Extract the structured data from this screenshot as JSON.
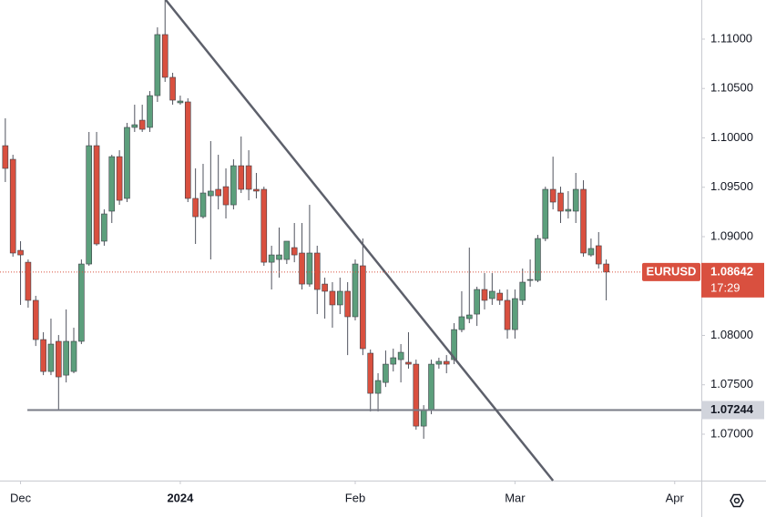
{
  "chart_data": {
    "type": "candlestick",
    "up_color": "#5c9f7c",
    "down_color": "#d9503f",
    "xlim": [
      -0.7,
      91.5
    ],
    "xticks": [
      {
        "value": 2,
        "label": "Dec"
      },
      {
        "value": 23,
        "label": "2024"
      },
      {
        "value": 46,
        "label": "Feb"
      },
      {
        "value": 67,
        "label": "Mar"
      },
      {
        "value": 88,
        "label": "Apr"
      }
    ],
    "ylim": [
      1.0653,
      1.11396
    ],
    "yticks": [
      {
        "value": 1.07,
        "label": "1.07000"
      },
      {
        "value": 1.075,
        "label": "1.07500"
      },
      {
        "value": 1.08,
        "label": "1.08000"
      },
      {
        "value": 1.085,
        "label": "1.08500"
      },
      {
        "value": 1.09,
        "label": "1.09000"
      },
      {
        "value": 1.095,
        "label": "1.09500"
      },
      {
        "value": 1.1,
        "label": "1.10000"
      },
      {
        "value": 1.105,
        "label": "1.10500"
      },
      {
        "value": 1.11,
        "label": "1.11000"
      }
    ],
    "open": [
      1.09921,
      1.09783,
      1.08861,
      1.08741,
      1.08355,
      1.07958,
      1.07635,
      1.0794,
      1.07598,
      1.07635,
      1.0794,
      1.08723,
      1.09921,
      1.08954,
      1.09258,
      1.0981,
      1.09387,
      1.10106,
      1.10179,
      1.10106,
      1.10428,
      1.11046,
      1.10613,
      1.10355,
      1.10364,
      1.09387,
      1.09202,
      1.09414,
      1.09479,
      1.09506,
      1.09322,
      1.09718,
      1.09718,
      1.09479,
      1.09479,
      1.08741,
      1.08769,
      1.08769,
      1.08889,
      1.08834,
      1.0852,
      1.08834,
      1.0852,
      1.08447,
      1.08309,
      1.08447,
      1.08189,
      1.08705,
      1.0782,
      1.07414,
      1.07524,
      1.07709,
      1.07755,
      1.07728,
      1.07709,
      1.07082,
      1.07248,
      1.07709,
      1.07737,
      1.07755,
      1.08059,
      1.0817,
      1.08216,
      1.08465,
      1.08373,
      1.08428,
      1.08355,
      1.08059,
      1.08355,
      1.08557,
      1.08557,
      1.08981,
      1.09479,
      1.09442,
      1.09258,
      1.09258,
      1.09479,
      1.08815,
      1.08908,
      1.08723
    ],
    "high": [
      1.10198,
      1.09829,
      1.08954,
      1.08769,
      1.08401,
      1.08032,
      1.0817,
      1.08004,
      1.08263,
      1.08078,
      1.08769,
      1.1006,
      1.1006,
      1.09276,
      1.09829,
      1.09875,
      1.10152,
      1.10336,
      1.10336,
      1.10474,
      1.11119,
      1.11396,
      1.10659,
      1.10428,
      1.10401,
      1.09691,
      1.09737,
      1.09967,
      1.09829,
      1.09691,
      1.09783,
      1.10014,
      1.09875,
      1.09645,
      1.09506,
      1.08908,
      1.09092,
      1.08954,
      1.09138,
      1.09138,
      1.09322,
      1.08908,
      1.08585,
      1.08539,
      1.08585,
      1.08539,
      1.08769,
      1.08981,
      1.07857,
      1.07617,
      1.07847,
      1.07866,
      1.07912,
      1.08032,
      1.07755,
      1.07294,
      1.07755,
      1.07774,
      1.07801,
      1.08124,
      1.08447,
      1.08889,
      1.08493,
      1.08631,
      1.08631,
      1.08465,
      1.08465,
      1.08465,
      1.08677,
      1.08769,
      1.09018,
      1.09506,
      1.0981,
      1.09506,
      1.09461,
      1.09645,
      1.09571,
      1.08981,
      1.09046,
      1.08769
    ],
    "low": [
      1.09553,
      1.08797,
      1.08309,
      1.08281,
      1.07893,
      1.07598,
      1.07598,
      1.07248,
      1.07524,
      1.07617,
      1.07912,
      1.08705,
      1.08908,
      1.08908,
      1.09138,
      1.09322,
      1.0935,
      1.1006,
      1.1006,
      1.1006,
      1.10364,
      1.10567,
      1.10336,
      1.10336,
      1.0935,
      1.08926,
      1.09184,
      1.08769,
      1.09276,
      1.09184,
      1.09276,
      1.09442,
      1.09368,
      1.09387,
      1.08705,
      1.08465,
      1.08585,
      1.08723,
      1.08741,
      1.08465,
      1.08493,
      1.08216,
      1.0817,
      1.08078,
      1.08216,
      1.07801,
      1.08152,
      1.07801,
      1.0723,
      1.0723,
      1.07478,
      1.07635,
      1.07524,
      1.07663,
      1.07045,
      1.06953,
      1.07202,
      1.07663,
      1.07617,
      1.07709,
      1.08032,
      1.08124,
      1.08096,
      1.08263,
      1.08309,
      1.08309,
      1.07967,
      1.07967,
      1.08309,
      1.08493,
      1.08539,
      1.08954,
      1.09276,
      1.09138,
      1.09184,
      1.09138,
      1.08797,
      1.08797,
      1.08677,
      1.08355
    ],
    "close": [
      1.09691,
      1.08834,
      1.08815,
      1.08355,
      1.07958,
      1.07635,
      1.07912,
      1.0758,
      1.0794,
      1.0794,
      1.08723,
      1.09921,
      1.08926,
      1.0923,
      1.0981,
      1.09368,
      1.10106,
      1.10133,
      1.10087,
      1.10428,
      1.11046,
      1.10613,
      1.10382,
      1.10373,
      1.09387,
      1.09202,
      1.09442,
      1.09461,
      1.09414,
      1.09322,
      1.09718,
      1.09479,
      1.09479,
      1.09461,
      1.08741,
      1.08815,
      1.08815,
      1.08954,
      1.08815,
      1.0852,
      1.08834,
      1.08465,
      1.08447,
      1.08309,
      1.08447,
      1.08189,
      1.08723,
      1.07866,
      1.07414,
      1.07543,
      1.07709,
      1.07774,
      1.07829,
      1.07709,
      1.07082,
      1.07248,
      1.07709,
      1.07737,
      1.07709,
      1.08059,
      1.08189,
      1.08207,
      1.08465,
      1.08355,
      1.08447,
      1.08355,
      1.08059,
      1.08373,
      1.08539,
      1.08566,
      1.08981,
      1.09479,
      1.0935,
      1.09258,
      1.09276,
      1.09479,
      1.08834,
      1.0888,
      1.08723,
      1.08642
    ],
    "trendline": {
      "x": [
        21.1,
        72
      ],
      "y": [
        1.11396,
        1.0653
      ]
    },
    "support_line": {
      "value": 1.07244,
      "x_start": 2.9
    },
    "last_price": {
      "symbol": "EURUSD",
      "value": 1.08642,
      "countdown": "17:29"
    }
  }
}
